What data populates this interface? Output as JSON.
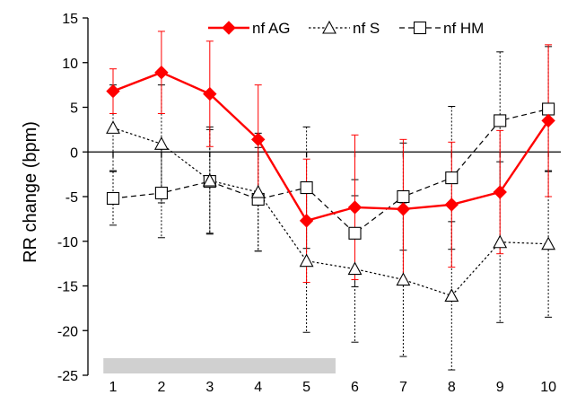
{
  "chart_data": {
    "type": "line",
    "title": "",
    "xlabel": "",
    "ylabel": "RR change (bpm)",
    "x": [
      1,
      2,
      3,
      4,
      5,
      6,
      7,
      8,
      9,
      10
    ],
    "x_tick_labels": [
      "1",
      "2",
      "3",
      "4",
      "5",
      "6",
      "7",
      "8",
      "9",
      "10"
    ],
    "ylim": [
      -25,
      15
    ],
    "y_ticks": [
      15,
      10,
      5,
      0,
      -5,
      -10,
      -15,
      -20,
      -25
    ],
    "y_tick_labels": [
      "15",
      "10",
      "5",
      "0",
      "-5",
      "-10",
      "-15",
      "-20",
      "-25"
    ],
    "grid": false,
    "legend_position": "top-right",
    "shaded_region_x": [
      0.8,
      5.6
    ],
    "series": [
      {
        "name": "nf AG",
        "color": "#ff0000",
        "marker": "diamond",
        "line": "solid",
        "values": [
          6.8,
          8.9,
          6.5,
          1.4,
          -7.7,
          -6.2,
          -6.4,
          -5.9,
          -4.5,
          3.5
        ],
        "error": [
          2.5,
          4.6,
          5.9,
          6.1,
          6.9,
          8.1,
          7.8,
          7.0,
          6.9,
          8.5
        ]
      },
      {
        "name": "nf S",
        "color": "#000000",
        "marker": "triangle",
        "line": "dotted",
        "values": [
          2.7,
          0.9,
          -3.2,
          -4.5,
          -12.2,
          -13.1,
          -14.3,
          -16.1,
          -10.1,
          -10.3
        ],
        "error": [
          4.8,
          6.6,
          6.0,
          6.6,
          8.0,
          8.2,
          8.6,
          8.3,
          9.0,
          8.2
        ]
      },
      {
        "name": "nf HM",
        "color": "#000000",
        "marker": "square",
        "line": "dashed",
        "values": [
          -5.2,
          -4.6,
          -3.3,
          -5.3,
          -4.0,
          -9.1,
          -5.0,
          -2.9,
          3.5,
          4.8
        ],
        "error": [
          3.0,
          5.0,
          5.8,
          5.8,
          6.8,
          6.0,
          6.0,
          8.0,
          7.7,
          7.0
        ]
      }
    ]
  }
}
